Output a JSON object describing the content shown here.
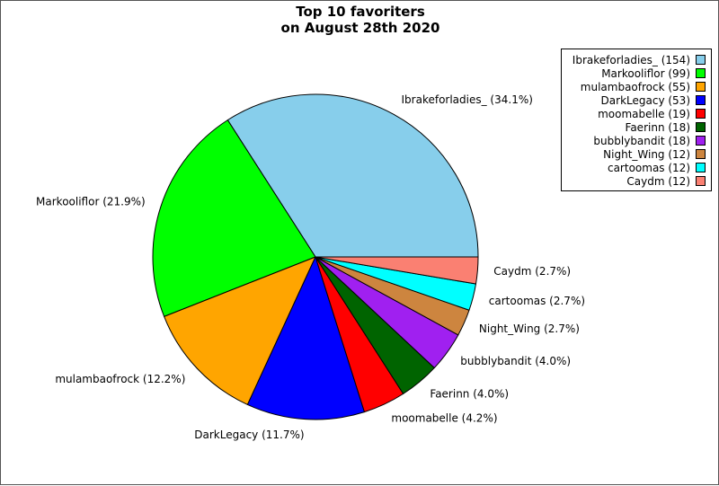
{
  "chart_data": {
    "type": "pie",
    "title": [
      "Top 10 favoriters",
      "on August 28th 2020"
    ],
    "start_angle_deg": 0,
    "direction": "counterclockwise",
    "legend_position": "top-right",
    "slices": [
      {
        "label": "Ibrakeforladies_",
        "value": 154,
        "percent_label": "Ibrakeforladies_ (34.1%)",
        "legend_label": "Ibrakeforladies_ (154)",
        "color": "#87ceeb"
      },
      {
        "label": "Markooliflor",
        "value": 99,
        "percent_label": "Markooliflor (21.9%)",
        "legend_label": "Markooliflor (99)",
        "color": "#00ff00"
      },
      {
        "label": "mulambaofrock",
        "value": 55,
        "percent_label": "mulambaofrock (12.2%)",
        "legend_label": "mulambaofrock (55)",
        "color": "#ffa500"
      },
      {
        "label": "DarkLegacy",
        "value": 53,
        "percent_label": "DarkLegacy (11.7%)",
        "legend_label": "DarkLegacy (53)",
        "color": "#0000ff"
      },
      {
        "label": "moomabelle",
        "value": 19,
        "percent_label": "moomabelle (4.2%)",
        "legend_label": "moomabelle (19)",
        "color": "#ff0000"
      },
      {
        "label": "Faerinn",
        "value": 18,
        "percent_label": "Faerinn (4.0%)",
        "legend_label": "Faerinn (18)",
        "color": "#006400"
      },
      {
        "label": "bubblybandit",
        "value": 18,
        "percent_label": "bubblybandit (4.0%)",
        "legend_label": "bubblybandit (18)",
        "color": "#a020f0"
      },
      {
        "label": "Night_Wing",
        "value": 12,
        "percent_label": "Night_Wing (2.7%)",
        "legend_label": "Night_Wing (12)",
        "color": "#cd853f"
      },
      {
        "label": "cartoomas",
        "value": 12,
        "percent_label": "cartoomas (2.7%)",
        "legend_label": "cartoomas (12)",
        "color": "#00ffff"
      },
      {
        "label": "Caydm",
        "value": 12,
        "percent_label": "Caydm (2.7%)",
        "legend_label": "Caydm (12)",
        "color": "#fa8072"
      }
    ]
  }
}
